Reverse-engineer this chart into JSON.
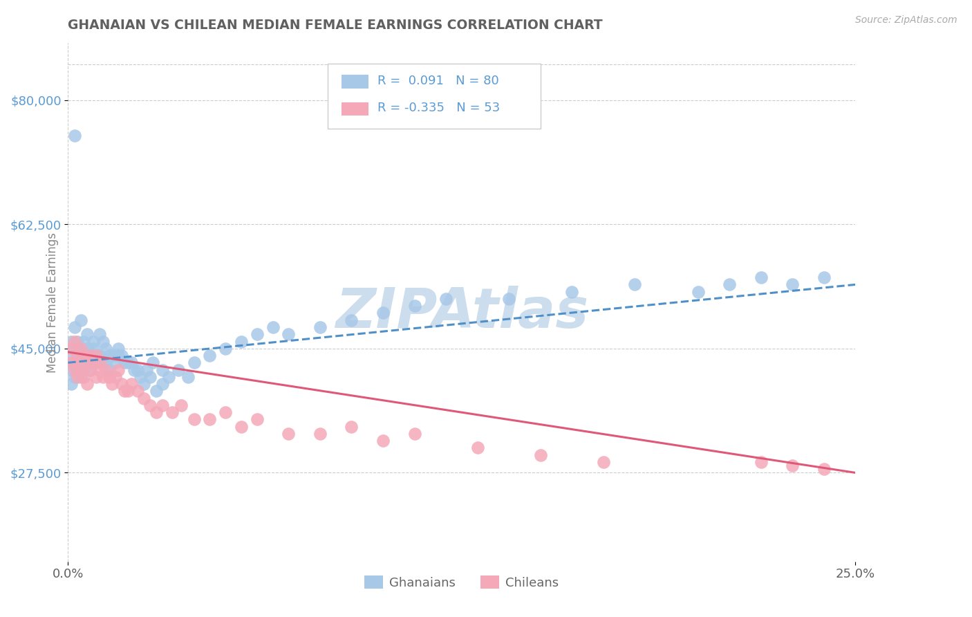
{
  "title": "GHANAIAN VS CHILEAN MEDIAN FEMALE EARNINGS CORRELATION CHART",
  "source": "Source: ZipAtlas.com",
  "ylabel": "Median Female Earnings",
  "y_ticks": [
    27500,
    45000,
    62500,
    80000
  ],
  "y_tick_labels": [
    "$27,500",
    "$45,000",
    "$62,500",
    "$80,000"
  ],
  "ylim": [
    15000,
    88000
  ],
  "xlim": [
    0.0,
    0.25
  ],
  "R_ghanaian": 0.091,
  "N_ghanaian": 80,
  "R_chilean": -0.335,
  "N_chilean": 53,
  "color_ghanaian": "#a8c8e8",
  "color_chilean": "#f4a8b8",
  "color_trend_ghanaian": "#5090c8",
  "color_trend_chilean": "#e05878",
  "color_title": "#606060",
  "color_ytick": "#5b9bd5",
  "color_xtick": "#606060",
  "color_legend_text": "#5b9bd5",
  "watermark": "ZIPAtlas",
  "watermark_color": "#ccdded",
  "trend_g_x0": 0.0,
  "trend_g_y0": 43000,
  "trend_g_x1": 0.25,
  "trend_g_y1": 54000,
  "trend_c_x0": 0.0,
  "trend_c_y0": 44500,
  "trend_c_x1": 0.25,
  "trend_c_y1": 27500,
  "ghanaian_x": [
    0.001,
    0.001,
    0.001,
    0.001,
    0.002,
    0.002,
    0.002,
    0.002,
    0.003,
    0.003,
    0.003,
    0.003,
    0.004,
    0.004,
    0.004,
    0.005,
    0.005,
    0.005,
    0.005,
    0.006,
    0.006,
    0.006,
    0.007,
    0.007,
    0.007,
    0.008,
    0.008,
    0.009,
    0.009,
    0.01,
    0.01,
    0.011,
    0.011,
    0.012,
    0.012,
    0.013,
    0.013,
    0.014,
    0.015,
    0.015,
    0.016,
    0.016,
    0.017,
    0.018,
    0.019,
    0.02,
    0.021,
    0.022,
    0.023,
    0.024,
    0.025,
    0.026,
    0.027,
    0.028,
    0.03,
    0.03,
    0.032,
    0.035,
    0.038,
    0.04,
    0.045,
    0.05,
    0.055,
    0.06,
    0.065,
    0.07,
    0.08,
    0.09,
    0.1,
    0.11,
    0.12,
    0.14,
    0.16,
    0.18,
    0.2,
    0.21,
    0.22,
    0.23,
    0.24,
    0.002
  ],
  "ghanaian_y": [
    44000,
    42000,
    46000,
    40000,
    48000,
    45000,
    43000,
    41000,
    45000,
    44000,
    46000,
    42000,
    49000,
    43000,
    41000,
    46000,
    44000,
    43000,
    42000,
    47000,
    45000,
    44000,
    44000,
    43000,
    42000,
    46000,
    45000,
    44000,
    43000,
    47000,
    44000,
    46000,
    43000,
    45000,
    43000,
    44000,
    42000,
    44000,
    44000,
    43000,
    45000,
    44000,
    44000,
    43000,
    43000,
    43000,
    42000,
    42000,
    41000,
    40000,
    42000,
    41000,
    43000,
    39000,
    42000,
    40000,
    41000,
    42000,
    41000,
    43000,
    44000,
    45000,
    46000,
    47000,
    48000,
    47000,
    48000,
    49000,
    50000,
    51000,
    52000,
    52000,
    53000,
    54000,
    53000,
    54000,
    55000,
    54000,
    55000,
    75000
  ],
  "chilean_x": [
    0.001,
    0.001,
    0.002,
    0.002,
    0.003,
    0.003,
    0.003,
    0.004,
    0.004,
    0.005,
    0.005,
    0.006,
    0.006,
    0.007,
    0.007,
    0.008,
    0.009,
    0.009,
    0.01,
    0.01,
    0.011,
    0.012,
    0.013,
    0.014,
    0.015,
    0.016,
    0.017,
    0.018,
    0.019,
    0.02,
    0.022,
    0.024,
    0.026,
    0.028,
    0.03,
    0.033,
    0.036,
    0.04,
    0.045,
    0.05,
    0.055,
    0.06,
    0.07,
    0.08,
    0.09,
    0.1,
    0.11,
    0.13,
    0.15,
    0.17,
    0.22,
    0.23,
    0.24
  ],
  "chilean_y": [
    45000,
    43000,
    46000,
    42000,
    44000,
    43000,
    41000,
    45000,
    42000,
    44000,
    41000,
    43000,
    40000,
    44000,
    42000,
    43000,
    44000,
    41000,
    43000,
    42000,
    41000,
    42000,
    41000,
    40000,
    41000,
    42000,
    40000,
    39000,
    39000,
    40000,
    39000,
    38000,
    37000,
    36000,
    37000,
    36000,
    37000,
    35000,
    35000,
    36000,
    34000,
    35000,
    33000,
    33000,
    34000,
    32000,
    33000,
    31000,
    30000,
    29000,
    29000,
    28500,
    28000
  ]
}
